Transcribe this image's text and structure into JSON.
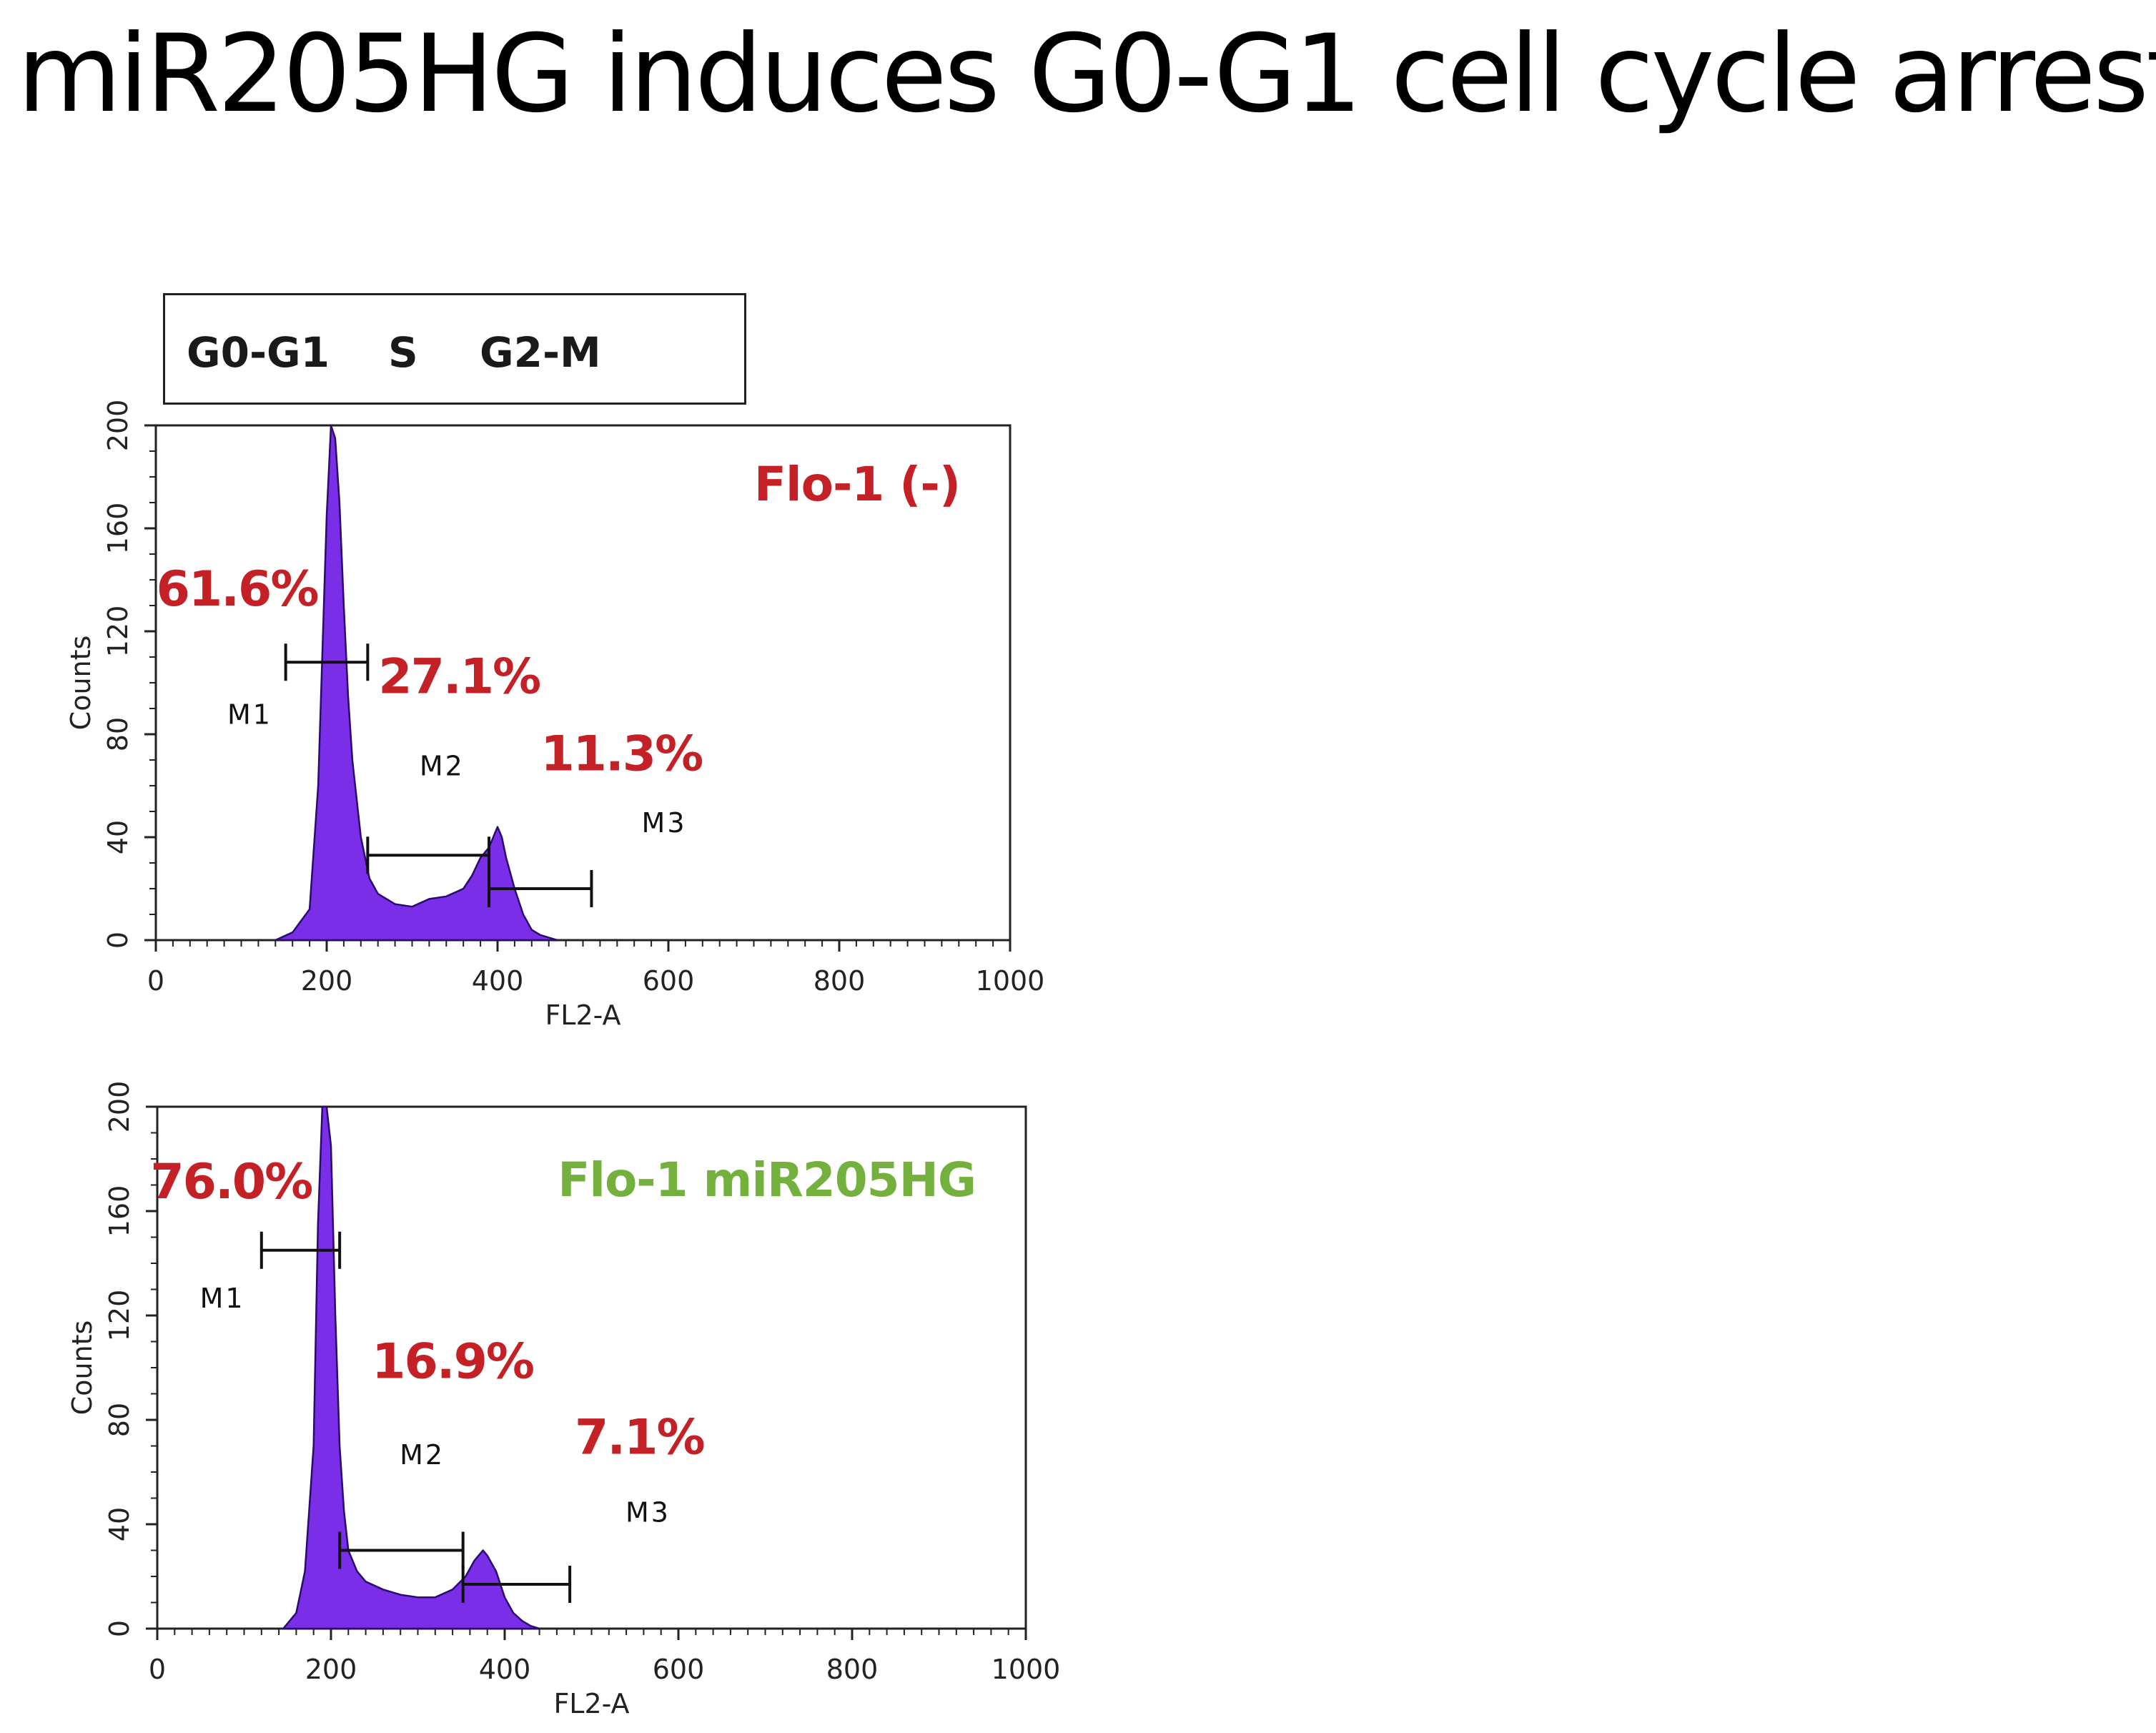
{
  "slide": {
    "title": "miR205HG induces G0-G1 cell cycle arrest"
  },
  "legend": {
    "phases": [
      "G0-G1",
      "S",
      "G2-M"
    ]
  },
  "colors": {
    "histogram_fill": "#7a2ee8",
    "histogram_edge": "#2a0b6e",
    "percent_text": "#c42127",
    "control_label": "#c42127",
    "treated_label": "#74b03e",
    "axis": "#222222",
    "marker_text": "#111111"
  },
  "chart_data": [
    {
      "type": "area",
      "title": "Flo-1 (-)",
      "title_color": "#c42127",
      "xlabel": "FL2-A",
      "ylabel": "Counts",
      "xlim": [
        0,
        1000
      ],
      "ylim": [
        0,
        200
      ],
      "xticks": [
        0,
        200,
        400,
        600,
        800,
        1000
      ],
      "yticks": [
        0,
        40,
        80,
        120,
        160,
        200
      ],
      "series": [
        {
          "name": "Counts",
          "x": [
            140,
            160,
            180,
            190,
            200,
            205,
            210,
            215,
            220,
            225,
            230,
            240,
            250,
            260,
            280,
            300,
            320,
            340,
            360,
            370,
            380,
            390,
            400,
            405,
            410,
            420,
            430,
            440,
            450,
            460,
            470
          ],
          "y": [
            0,
            3,
            12,
            60,
            165,
            200,
            195,
            170,
            130,
            95,
            70,
            40,
            24,
            18,
            14,
            13,
            16,
            17,
            20,
            25,
            32,
            36,
            44,
            40,
            32,
            20,
            10,
            4,
            2,
            1,
            0
          ]
        }
      ],
      "markers": [
        {
          "label": "M1",
          "start": 152,
          "end": 248,
          "y": 108,
          "label_x": 110,
          "label_y": 84
        },
        {
          "label": "M2",
          "start": 248,
          "end": 390,
          "y": 33,
          "label_x": 335,
          "label_y": 64
        },
        {
          "label": "M3",
          "start": 390,
          "end": 510,
          "y": 20,
          "label_x": 595,
          "label_y": 42
        }
      ],
      "percentages": [
        {
          "text": "61.6%",
          "phase": "G0-G1",
          "value": 61.6,
          "x": 95,
          "y": 130
        },
        {
          "text": "27.1%",
          "phase": "S",
          "value": 27.1,
          "x": 355,
          "y": 96
        },
        {
          "text": "11.3%",
          "phase": "G2-M",
          "value": 11.3,
          "x": 545,
          "y": 66
        }
      ]
    },
    {
      "type": "area",
      "title": "Flo-1 miR205HG",
      "title_color": "#74b03e",
      "xlabel": "FL2-A",
      "ylabel": "Counts",
      "xlim": [
        0,
        1000
      ],
      "ylim": [
        0,
        200
      ],
      "xticks": [
        0,
        200,
        400,
        600,
        800,
        1000
      ],
      "yticks": [
        0,
        40,
        80,
        120,
        160,
        200
      ],
      "series": [
        {
          "name": "Counts",
          "x": [
            145,
            160,
            170,
            180,
            185,
            190,
            195,
            200,
            205,
            210,
            215,
            220,
            230,
            240,
            260,
            280,
            300,
            320,
            340,
            355,
            365,
            375,
            380,
            390,
            400,
            410,
            420,
            430,
            440
          ],
          "y": [
            0,
            6,
            22,
            70,
            155,
            200,
            200,
            185,
            120,
            70,
            45,
            30,
            22,
            18,
            15,
            13,
            12,
            12,
            15,
            20,
            26,
            30,
            28,
            22,
            12,
            6,
            3,
            1,
            0
          ]
        }
      ],
      "markers": [
        {
          "label": "M1",
          "start": 120,
          "end": 210,
          "y": 145,
          "label_x": 75,
          "label_y": 123
        },
        {
          "label": "M2",
          "start": 210,
          "end": 352,
          "y": 30,
          "label_x": 305,
          "label_y": 63
        },
        {
          "label": "M3",
          "start": 352,
          "end": 475,
          "y": 17,
          "label_x": 565,
          "label_y": 41
        }
      ],
      "percentages": [
        {
          "text": "76.0%",
          "phase": "G0-G1",
          "value": 76.0,
          "x": 85,
          "y": 165
        },
        {
          "text": "16.9%",
          "phase": "S",
          "value": 16.9,
          "x": 340,
          "y": 96
        },
        {
          "text": "7.1%",
          "phase": "G2-M",
          "value": 7.1,
          "x": 555,
          "y": 67
        }
      ]
    }
  ]
}
